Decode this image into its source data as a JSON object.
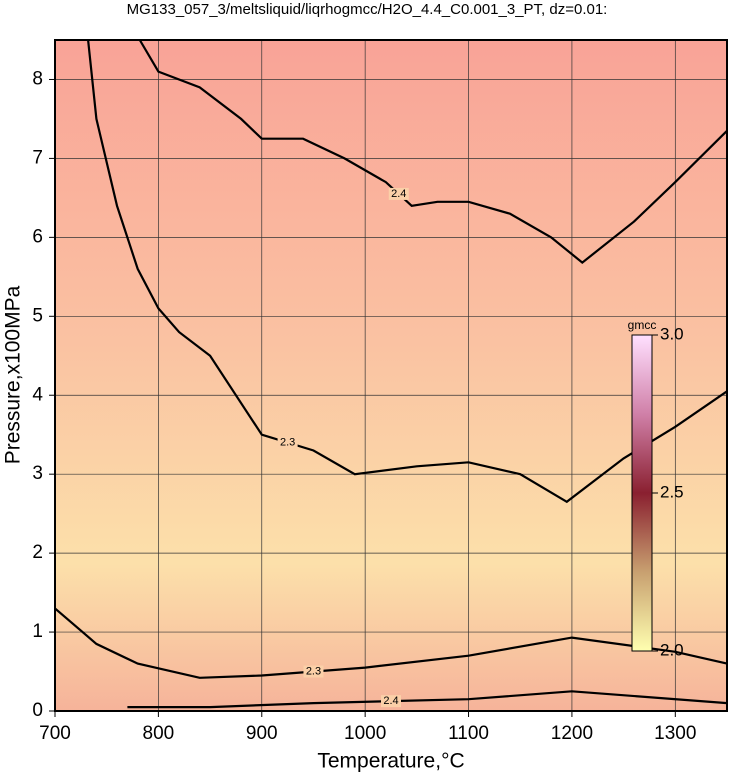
{
  "chart_data": {
    "type": "contour",
    "title": "MG133_057_3/meltsliquid/liqrhogmcc/H2O_4.4_C0.001_3_PT, dz=0.01:",
    "x_label": "Temperature,°C",
    "y_label": "Pressure,x100MPa",
    "xlim": [
      700,
      1350
    ],
    "ylim": [
      0,
      8.5
    ],
    "xticks": [
      700,
      800,
      900,
      1000,
      1100,
      1200,
      1300
    ],
    "yticks": [
      0,
      1,
      2,
      3,
      4,
      5,
      6,
      7,
      8
    ],
    "grid": true,
    "contours": [
      {
        "level": 2.4,
        "x": [
          782,
          800,
          840,
          880,
          900,
          940,
          980,
          1020,
          1045,
          1070,
          1100,
          1140,
          1180,
          1210,
          1260,
          1300,
          1350
        ],
        "y": [
          8.5,
          8.1,
          7.9,
          7.5,
          7.25,
          7.25,
          7.0,
          6.7,
          6.4,
          6.45,
          6.45,
          6.3,
          6.0,
          5.68,
          6.2,
          6.7,
          7.35
        ]
      },
      {
        "level": 2.3,
        "x": [
          732,
          740,
          760,
          780,
          800,
          820,
          850,
          900,
          950,
          990,
          1050,
          1100,
          1150,
          1195,
          1250,
          1300,
          1350
        ],
        "y": [
          8.5,
          7.5,
          6.4,
          5.6,
          5.1,
          4.8,
          4.5,
          3.5,
          3.3,
          3.0,
          3.1,
          3.15,
          3.0,
          2.65,
          3.2,
          3.6,
          4.05
        ]
      },
      {
        "level": 2.3,
        "x": [
          700,
          740,
          780,
          840,
          900,
          1000,
          1100,
          1200,
          1300,
          1350
        ],
        "y": [
          1.3,
          0.85,
          0.6,
          0.42,
          0.45,
          0.55,
          0.7,
          0.93,
          0.75,
          0.6
        ]
      },
      {
        "level": 2.4,
        "x": [
          770,
          850,
          950,
          1100,
          1200,
          1350
        ],
        "y": [
          0.05,
          0.05,
          0.1,
          0.15,
          0.25,
          0.1
        ]
      }
    ],
    "colorbar": {
      "label": "gmcc",
      "lim": [
        2,
        3
      ],
      "ticks": [
        {
          "value": 2,
          "label": "2.0"
        },
        2.5,
        {
          "value": 3,
          "label": "3.0"
        }
      ]
    }
  }
}
